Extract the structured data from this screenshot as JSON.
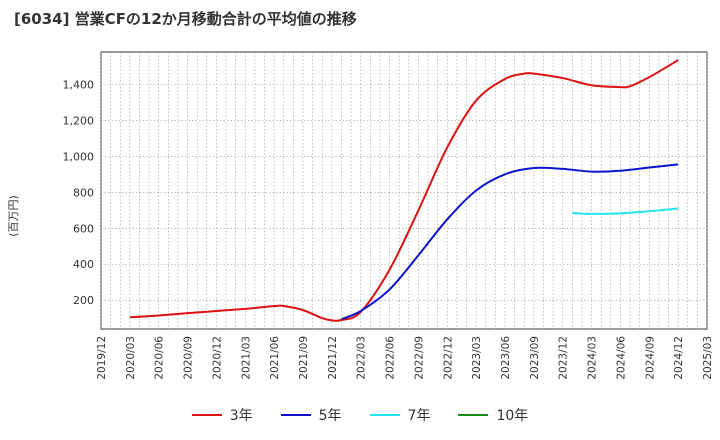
{
  "title": "[6034]  営業CFの12か月移動合計の平均値の推移",
  "chart_data": {
    "type": "line",
    "title": "[6034]  営業CFの12か月移動合計の平均値の推移",
    "ylabel": "(百万円)",
    "xlabel": "",
    "ylim": [
      40,
      1580
    ],
    "yticks": [
      200,
      400,
      600,
      800,
      "1,000",
      "1,200",
      "1,400"
    ],
    "ytick_values": [
      200,
      400,
      600,
      800,
      1000,
      1200,
      1400
    ],
    "xticks": [
      "2019/12",
      "2020/03",
      "2020/06",
      "2020/09",
      "2020/12",
      "2021/03",
      "2021/06",
      "2021/09",
      "2021/12",
      "2022/03",
      "2022/06",
      "2022/09",
      "2022/12",
      "2023/03",
      "2023/06",
      "2023/09",
      "2023/12",
      "2024/03",
      "2024/06",
      "2024/09",
      "2024/12",
      "2025/03"
    ],
    "grid": true,
    "legend_position": "bottom",
    "series": [
      {
        "name": "3年",
        "color": "#dd1111",
        "points": [
          [
            "2020/03",
            105
          ],
          [
            "2020/06",
            115
          ],
          [
            "2020/09",
            128
          ],
          [
            "2020/12",
            140
          ],
          [
            "2021/03",
            152
          ],
          [
            "2021/06",
            167
          ],
          [
            "2021/07",
            168
          ],
          [
            "2021/09",
            145
          ],
          [
            "2021/11",
            100
          ],
          [
            "2021/12",
            88
          ],
          [
            "2022/01",
            90
          ],
          [
            "2022/03",
            135
          ],
          [
            "2022/06",
            370
          ],
          [
            "2022/09",
            700
          ],
          [
            "2022/12",
            1050
          ],
          [
            "2023/03",
            1310
          ],
          [
            "2023/06",
            1430
          ],
          [
            "2023/08",
            1460
          ],
          [
            "2023/09",
            1460
          ],
          [
            "2023/12",
            1435
          ],
          [
            "2024/03",
            1395
          ],
          [
            "2024/06",
            1385
          ],
          [
            "2024/07",
            1390
          ],
          [
            "2024/09",
            1440
          ],
          [
            "2024/12",
            1535
          ]
        ]
      },
      {
        "name": "5年",
        "color": "#0a14cc",
        "points": [
          [
            "2022/01",
            95
          ],
          [
            "2022/03",
            140
          ],
          [
            "2022/06",
            260
          ],
          [
            "2022/09",
            450
          ],
          [
            "2022/12",
            650
          ],
          [
            "2023/03",
            810
          ],
          [
            "2023/06",
            900
          ],
          [
            "2023/09",
            935
          ],
          [
            "2023/12",
            930
          ],
          [
            "2024/03",
            915
          ],
          [
            "2024/06",
            920
          ],
          [
            "2024/09",
            938
          ],
          [
            "2024/12",
            955
          ]
        ]
      },
      {
        "name": "7年",
        "color": "#22e5ee",
        "points": [
          [
            "2024/01",
            685
          ],
          [
            "2024/03",
            680
          ],
          [
            "2024/06",
            683
          ],
          [
            "2024/09",
            695
          ],
          [
            "2024/12",
            710
          ]
        ]
      },
      {
        "name": "10年",
        "color": "#1a8a1a",
        "points": []
      }
    ]
  }
}
